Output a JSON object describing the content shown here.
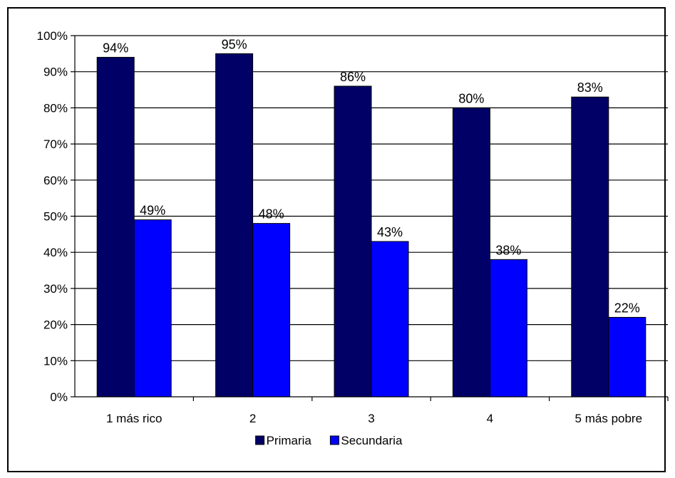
{
  "chart_data": {
    "type": "bar",
    "categories": [
      "1 más rico",
      "2",
      "3",
      "4",
      "5 más pobre"
    ],
    "series": [
      {
        "name": "Primaria",
        "values": [
          94,
          95,
          86,
          80,
          83
        ],
        "labels": [
          "94%",
          "95%",
          "86%",
          "80%",
          "83%"
        ],
        "color": "#000066"
      },
      {
        "name": "Secundaria",
        "values": [
          49,
          48,
          43,
          38,
          22
        ],
        "labels": [
          "49%",
          "48%",
          "43%",
          "38%",
          "22%"
        ],
        "color": "#0000FF"
      }
    ],
    "yticks": [
      "0%",
      "10%",
      "20%",
      "30%",
      "40%",
      "50%",
      "60%",
      "70%",
      "80%",
      "90%",
      "100%"
    ],
    "ylim": [
      0,
      100
    ],
    "grid": true,
    "legend_position": "bottom"
  }
}
